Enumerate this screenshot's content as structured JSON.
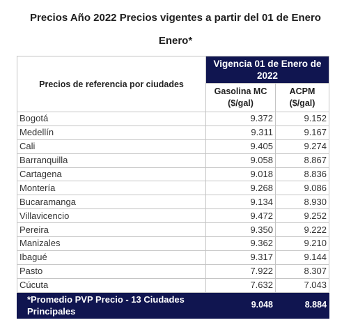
{
  "title": {
    "line1": "Precios Año 2022 Precios vigentes a partir del 01 de Enero",
    "line2": "Enero*"
  },
  "table": {
    "city_header": "Precios de referencia por ciudades",
    "group_header": "Vigencia 01 de Enero de 2022",
    "col_gasolina": "Gasolina MC ($/gal)",
    "col_acpm": "ACPM ($/gal)",
    "rows": [
      {
        "city": "Bogotá",
        "gasolina": "9.372",
        "acpm": "9.152"
      },
      {
        "city": "Medellín",
        "gasolina": "9.311",
        "acpm": "9.167"
      },
      {
        "city": "Cali",
        "gasolina": "9.405",
        "acpm": "9.274"
      },
      {
        "city": "Barranquilla",
        "gasolina": "9.058",
        "acpm": "8.867"
      },
      {
        "city": "Cartagena",
        "gasolina": "9.018",
        "acpm": "8.836"
      },
      {
        "city": "Montería",
        "gasolina": "9.268",
        "acpm": "9.086"
      },
      {
        "city": "Bucaramanga",
        "gasolina": "9.134",
        "acpm": "8.930"
      },
      {
        "city": "Villavicencio",
        "gasolina": "9.472",
        "acpm": "9.252"
      },
      {
        "city": "Pereira",
        "gasolina": "9.350",
        "acpm": "9.222"
      },
      {
        "city": "Manizales",
        "gasolina": "9.362",
        "acpm": "9.210"
      },
      {
        "city": "Ibagué",
        "gasolina": "9.317",
        "acpm": "9.144"
      },
      {
        "city": "Pasto",
        "gasolina": "7.922",
        "acpm": "8.307"
      },
      {
        "city": "Cúcuta",
        "gasolina": "7.632",
        "acpm": "7.043"
      }
    ],
    "footer": {
      "label": "*Promedio PVP Precio - 13 Ciudades Principales",
      "gasolina": "9.048",
      "acpm": "8.884"
    }
  },
  "colors": {
    "header_bg": "#101550",
    "header_text": "#ffffff",
    "border": "#c4c4c4"
  }
}
